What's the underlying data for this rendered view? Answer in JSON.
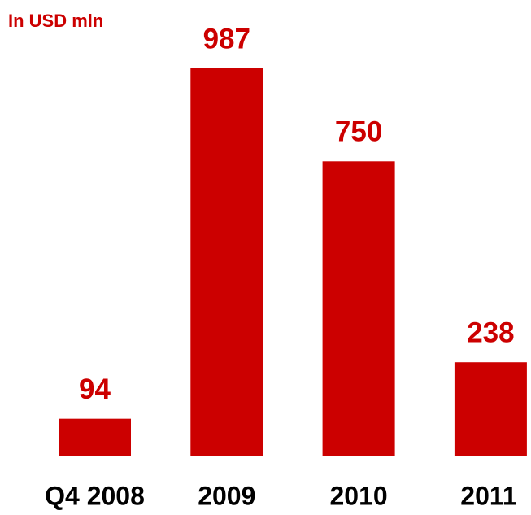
{
  "chart_data": {
    "type": "bar",
    "title": "In USD mln",
    "categories": [
      "Q4 2008",
      "2009",
      "2010",
      "2011"
    ],
    "values": [
      94,
      987,
      750,
      238
    ],
    "color": "#cc0000"
  }
}
